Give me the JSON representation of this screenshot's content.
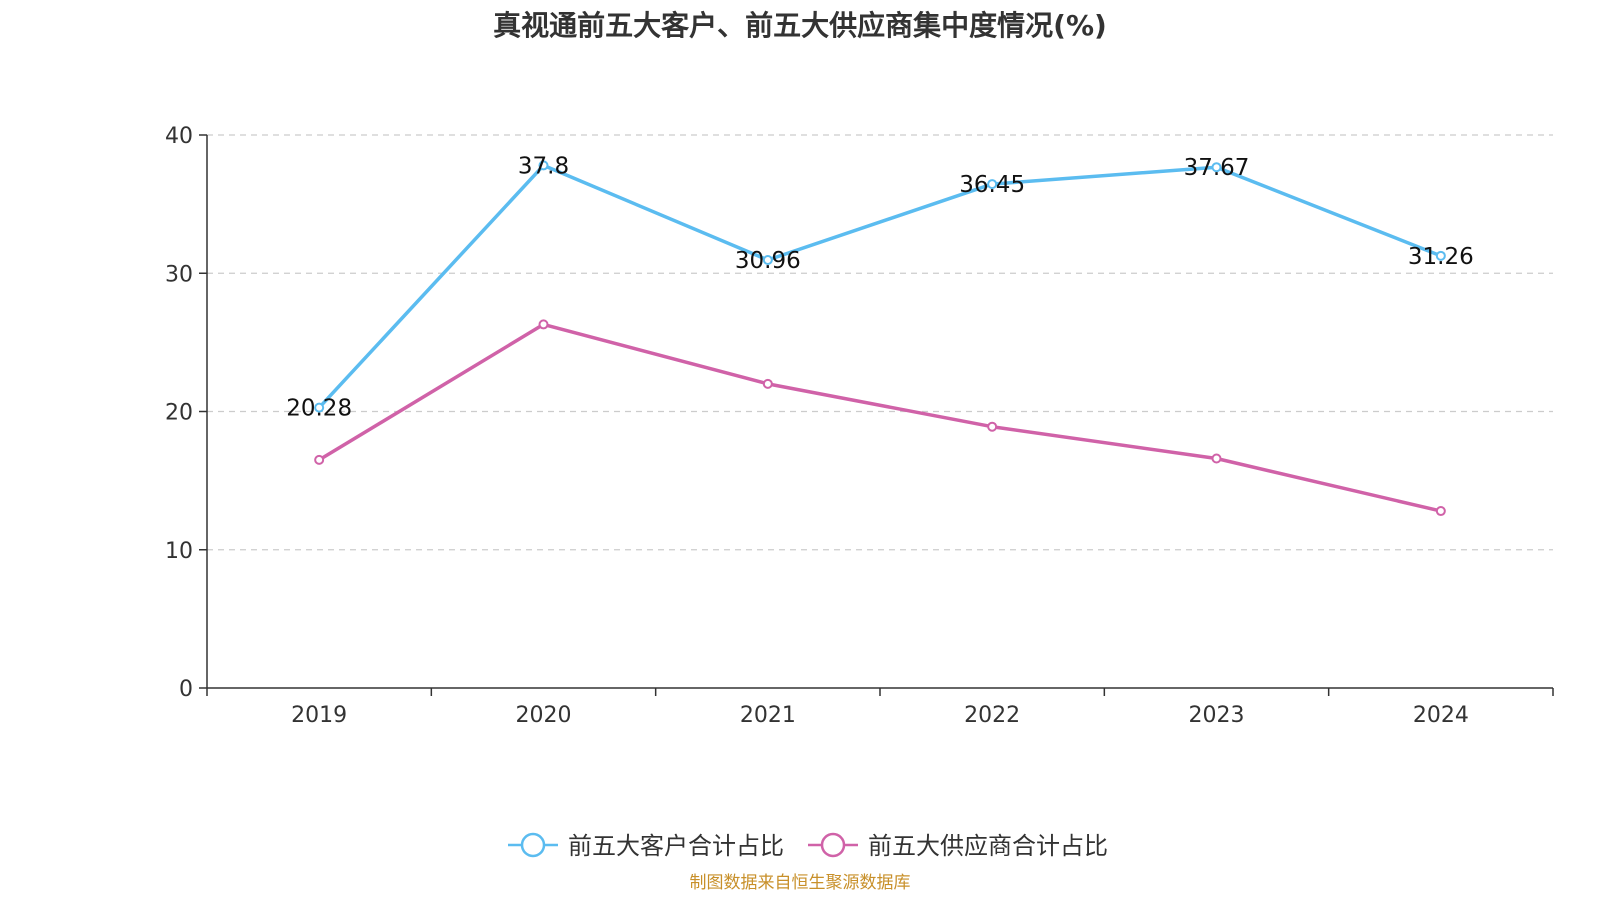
{
  "chart_data": {
    "type": "line",
    "title": "真视通前五大客户、前五大供应商集中度情况(%)",
    "categories": [
      "2019",
      "2020",
      "2021",
      "2022",
      "2023",
      "2024"
    ],
    "ylim": [
      0,
      40
    ],
    "yticks": [
      0,
      10,
      20,
      30,
      40
    ],
    "grid": true,
    "legend_position": "bottom",
    "series": [
      {
        "name": "前五大客户合计占比",
        "color": "#5bbcf0",
        "values": [
          20.28,
          37.8,
          30.96,
          36.45,
          37.67,
          31.26
        ],
        "labels": [
          "20.28",
          "37.8",
          "30.96",
          "36.45",
          "37.67",
          "31.26"
        ]
      },
      {
        "name": "前五大供应商合计占比",
        "color": "#d062a8",
        "values": [
          16.5,
          26.3,
          22.0,
          18.9,
          16.6,
          12.8
        ],
        "labels": []
      }
    ]
  },
  "source_note": "制图数据来自恒生聚源数据库"
}
